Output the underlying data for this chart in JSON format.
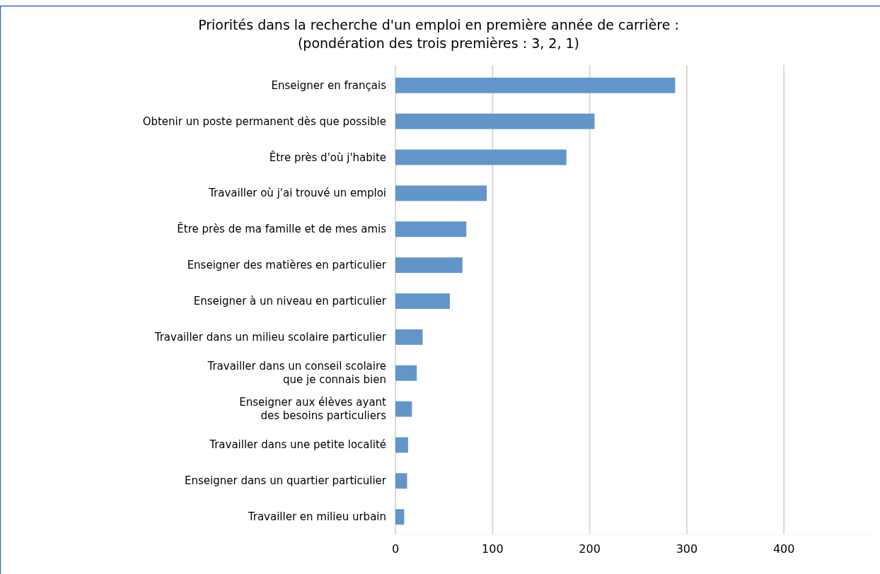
{
  "chart_data": {
    "type": "bar",
    "orientation": "horizontal",
    "title": "Priorités dans la recherche d'un emploi en première année de carrière :\n(pondération des trois premières : 3, 2, 1)",
    "categories": [
      "Enseigner en français",
      "Obtenir un poste permanent dès que possible",
      "Être près d'où j'habite",
      "Travailler où j'ai trouvé un emploi",
      "Être près de ma famille et de mes amis",
      "Enseigner des matières en particulier",
      "Enseigner à un niveau en particulier",
      "Travailler dans un milieu scolaire particulier",
      "Travailler dans un conseil scolaire\nque je connais bien",
      "Enseigner aux élèves ayant\ndes besoins particuliers",
      "Travailler dans une petite localité",
      "Enseigner dans un quartier particulier",
      "Travailler en milieu urbain"
    ],
    "values": [
      288,
      205,
      176,
      94,
      73,
      69,
      56,
      28,
      22,
      17,
      13,
      12,
      9
    ],
    "color": "#6295c9",
    "xlim": [
      0,
      490
    ],
    "xticks": [
      0,
      100,
      200,
      300,
      400
    ],
    "grid": "x"
  }
}
